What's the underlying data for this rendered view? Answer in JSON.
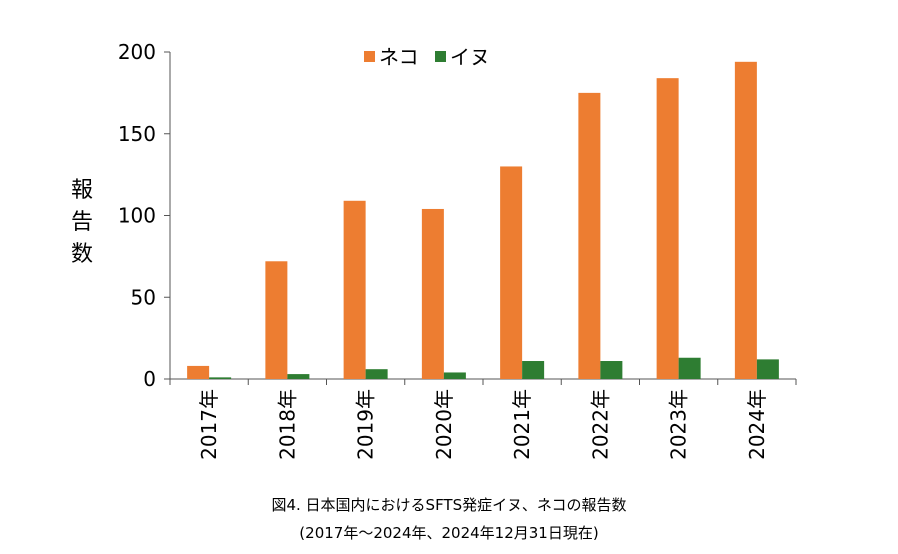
{
  "chart_data": {
    "type": "bar",
    "title": "",
    "xlabel": "",
    "ylabel": "報告数",
    "ylim": [
      0,
      200
    ],
    "yticks": [
      0,
      50,
      100,
      150,
      200
    ],
    "categories": [
      "2017年",
      "2018年",
      "2019年",
      "2020年",
      "2021年",
      "2022年",
      "2023年",
      "2024年"
    ],
    "series": [
      {
        "name": "ネコ",
        "color": "#ED7D31",
        "values": [
          8,
          72,
          109,
          104,
          130,
          175,
          184,
          194
        ]
      },
      {
        "name": "イヌ",
        "color": "#2E7D32",
        "values": [
          1,
          3,
          6,
          4,
          11,
          11,
          13,
          12
        ]
      }
    ],
    "legend": "top-center",
    "grid": false
  },
  "caption": {
    "line1": "図4. 日本国内におけるSFTS発症イヌ、ネコの報告数",
    "line2": "(2017年〜2024年、2024年12月31日現在)"
  }
}
